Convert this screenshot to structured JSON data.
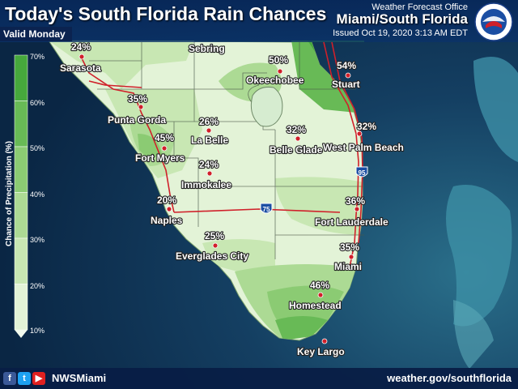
{
  "header": {
    "title": "Today's South Florida Rain Chances",
    "valid": "Valid Monday",
    "office_small": "Weather Forecast Office",
    "office_big": "Miami/South Florida",
    "issued": "Issued Oct 19, 2020 3:13 AM EDT"
  },
  "legend": {
    "title": "Chance of Precipitation (%)",
    "ticks": [
      "70%",
      "60%",
      "50%",
      "40%",
      "30%",
      "20%",
      "10%"
    ],
    "colors": [
      "#46a83c",
      "#68ba56",
      "#8bcb73",
      "#acda94",
      "#c8e7b3",
      "#e3f3d7"
    ]
  },
  "places": [
    {
      "name": "Sarasota",
      "pop": "24%"
    },
    {
      "name": "Sebring",
      "pop": ""
    },
    {
      "name": "Okeechobee",
      "pop": "50%"
    },
    {
      "name": "Stuart",
      "pop": "54%"
    },
    {
      "name": "Punta Gorda",
      "pop": "35%"
    },
    {
      "name": "La Belle",
      "pop": "26%"
    },
    {
      "name": "Fort Myers",
      "pop": "45%"
    },
    {
      "name": "Belle Glade",
      "pop": "32%"
    },
    {
      "name": "West Palm Beach",
      "pop": "32%"
    },
    {
      "name": "Immokalee",
      "pop": "24%"
    },
    {
      "name": "Naples",
      "pop": "20%"
    },
    {
      "name": "Fort Lauderdale",
      "pop": "36%"
    },
    {
      "name": "Everglades City",
      "pop": "25%"
    },
    {
      "name": "Miami",
      "pop": "35%"
    },
    {
      "name": "Homestead",
      "pop": "46%"
    },
    {
      "name": "Key Largo",
      "pop": ""
    }
  ],
  "highways": {
    "i75": "75",
    "i95": "95"
  },
  "footer": {
    "social": [
      "f",
      "t",
      "▶"
    ],
    "handle": "NWSMiami",
    "website": "weather.gov/southflorida"
  },
  "colors": {
    "ocean": "#0d2a4a",
    "land": "#e3f3d7",
    "roads": "#d0202a",
    "city_dot": "#d0202a"
  }
}
